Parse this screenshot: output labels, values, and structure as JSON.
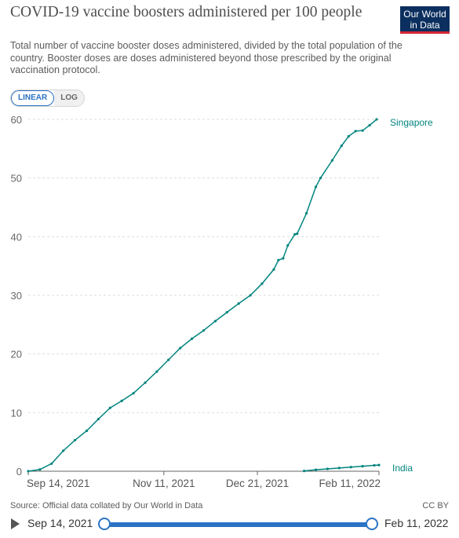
{
  "header": {
    "title": "COVID-19 vaccine boosters administered per 100 people",
    "subtitle": "Total number of vaccine booster doses administered, divided by the total population of the country. Booster doses are doses administered beyond those prescribed by the original vaccination protocol.",
    "logo_line1": "Our World",
    "logo_line2": "in Data"
  },
  "controls": {
    "linear_label": "LINEAR",
    "log_label": "LOG",
    "active_scale": "linear"
  },
  "footer": {
    "source": "Source: Official data collated by Our World in Data",
    "license": "CC BY"
  },
  "timeline": {
    "start_label": "Sep 14, 2021",
    "end_label": "Feb 11, 2022"
  },
  "chart_data": {
    "type": "line",
    "title": "COVID-19 vaccine boosters administered per 100 people",
    "x_ticks": [
      "Sep 14, 2021",
      "Nov 11, 2021",
      "Dec 21, 2021",
      "Feb 11, 2022"
    ],
    "y_ticks": [
      "0",
      "10",
      "20",
      "30",
      "40",
      "50",
      "60"
    ],
    "ylim": [
      0,
      60
    ],
    "xlim": [
      "2021-09-14",
      "2022-02-11"
    ],
    "grid": "horizontal dashed",
    "legend": "inline labels at line ends",
    "colors": {
      "line": "#00847e",
      "grid": "#dddddd",
      "axis": "#666666"
    },
    "series": [
      {
        "name": "Singapore",
        "points": [
          [
            "2021-09-14",
            0.0
          ],
          [
            "2021-09-19",
            0.3
          ],
          [
            "2021-09-24",
            1.3
          ],
          [
            "2021-09-29",
            3.5
          ],
          [
            "2021-10-04",
            5.3
          ],
          [
            "2021-10-09",
            6.9
          ],
          [
            "2021-10-14",
            8.9
          ],
          [
            "2021-10-19",
            10.8
          ],
          [
            "2021-10-24",
            12.0
          ],
          [
            "2021-10-29",
            13.3
          ],
          [
            "2021-11-03",
            15.1
          ],
          [
            "2021-11-08",
            17.0
          ],
          [
            "2021-11-13",
            19.0
          ],
          [
            "2021-11-18",
            21.0
          ],
          [
            "2021-11-23",
            22.6
          ],
          [
            "2021-11-28",
            24.0
          ],
          [
            "2021-12-03",
            25.6
          ],
          [
            "2021-12-08",
            27.1
          ],
          [
            "2021-12-13",
            28.6
          ],
          [
            "2021-12-18",
            30.0
          ],
          [
            "2021-12-23",
            32.0
          ],
          [
            "2021-12-28",
            34.4
          ],
          [
            "2021-12-30",
            36.0
          ],
          [
            "2022-01-01",
            36.3
          ],
          [
            "2022-01-03",
            38.5
          ],
          [
            "2022-01-06",
            40.4
          ],
          [
            "2022-01-07",
            40.5
          ],
          [
            "2022-01-11",
            44.0
          ],
          [
            "2022-01-15",
            48.5
          ],
          [
            "2022-01-17",
            50.0
          ],
          [
            "2022-01-22",
            53.0
          ],
          [
            "2022-01-26",
            55.5
          ],
          [
            "2022-01-29",
            57.1
          ],
          [
            "2022-02-01",
            58.0
          ],
          [
            "2022-02-04",
            58.1
          ],
          [
            "2022-02-07",
            59.0
          ],
          [
            "2022-02-10",
            60.0
          ]
        ]
      },
      {
        "name": "India",
        "points": [
          [
            "2022-01-10",
            0.05
          ],
          [
            "2022-01-15",
            0.25
          ],
          [
            "2022-01-20",
            0.4
          ],
          [
            "2022-01-25",
            0.55
          ],
          [
            "2022-01-30",
            0.7
          ],
          [
            "2022-02-04",
            0.85
          ],
          [
            "2022-02-09",
            1.0
          ],
          [
            "2022-02-11",
            1.05
          ]
        ]
      }
    ]
  }
}
